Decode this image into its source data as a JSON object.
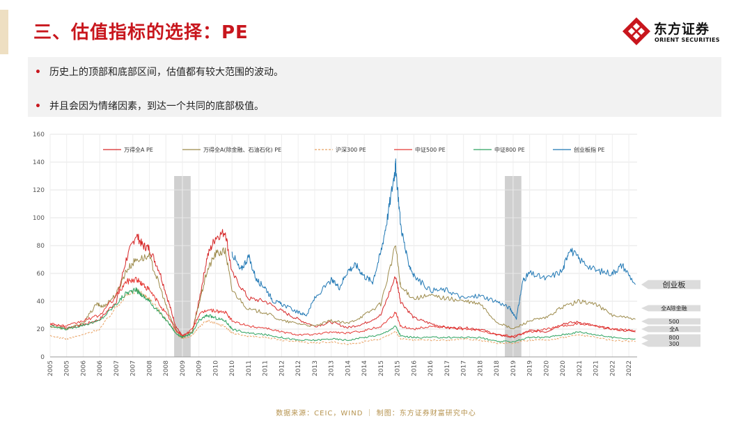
{
  "header": {
    "title": "三、估值指标的选择：PE",
    "logo": {
      "cn": "东方证券",
      "en": "ORIENT SECURITIES"
    }
  },
  "bullets": [
    "历史上的顶部和底部区间，估值都有较大范围的波动。",
    "并且会因为情绪因素，到达一个共同的底部极值。"
  ],
  "source": "数据来源：CEIC，WIND  ｜ 制图：东方证券财富研究中心",
  "colors": {
    "title_red": "#c8161d",
    "all_a": "#d62728",
    "all_a_ex": "#9c8a4a",
    "hs300": "#e8a060",
    "zz500": "#e53935",
    "zz800": "#2ca25f",
    "cyb": "#1f77b4",
    "shade": "#c8c8c8"
  },
  "chart_data": {
    "type": "line",
    "title": "",
    "xlabel": "",
    "ylabel": "",
    "xlim": [
      2005,
      2022.75
    ],
    "ylim": [
      0,
      160
    ],
    "yticks": [
      0,
      20,
      40,
      60,
      80,
      100,
      120,
      140,
      160
    ],
    "xtick_labels": [
      "2005",
      "2005",
      "2006",
      "2006",
      "2007",
      "2007",
      "2008",
      "2008",
      "2009",
      "2009",
      "2010",
      "2010",
      "2011",
      "2011",
      "2012",
      "2012",
      "2013",
      "2013",
      "2014",
      "2014",
      "2015",
      "2015",
      "2016",
      "2016",
      "2017",
      "2017",
      "2018",
      "2018",
      "2019",
      "2019",
      "2020",
      "2020",
      "2021",
      "2021",
      "2022",
      "2022"
    ],
    "grid": true,
    "legend_position": "top",
    "shaded_ranges": [
      [
        2008.75,
        2009.25
      ],
      [
        2018.75,
        2019.25
      ]
    ],
    "series": [
      {
        "name": "万得全A PE",
        "color_key": "all_a",
        "dash": false,
        "x": [
          2005,
          2005.5,
          2006,
          2006.5,
          2007,
          2007.3,
          2007.6,
          2007.8,
          2008,
          2008.3,
          2008.6,
          2008.8,
          2009,
          2009.3,
          2009.5,
          2009.75,
          2010,
          2010.3,
          2010.5,
          2011,
          2011.5,
          2012,
          2012.5,
          2013,
          2013.5,
          2014,
          2014.5,
          2015,
          2015.45,
          2015.6,
          2016,
          2016.5,
          2017,
          2017.5,
          2018,
          2018.5,
          2019,
          2019.5,
          2020,
          2020.5,
          2021,
          2021.5,
          2022,
          2022.7
        ],
        "y": [
          24,
          21,
          23,
          27,
          40,
          70,
          88,
          80,
          78,
          62,
          38,
          22,
          15,
          18,
          40,
          72,
          86,
          90,
          60,
          42,
          40,
          33,
          27,
          22,
          25,
          21,
          24,
          30,
          58,
          40,
          28,
          24,
          21,
          21,
          20,
          16,
          14,
          19,
          18,
          24,
          25,
          22,
          20,
          18
        ]
      },
      {
        "name": "万得全A(除金融、石油石化) PE",
        "color_key": "all_a_ex",
        "dash": false,
        "x": [
          2005,
          2005.5,
          2006,
          2006.4,
          2006.6,
          2007,
          2007.3,
          2007.6,
          2008,
          2008.3,
          2008.6,
          2008.8,
          2009,
          2009.3,
          2009.5,
          2009.75,
          2010,
          2010.3,
          2010.5,
          2011,
          2011.5,
          2012,
          2012.5,
          2013,
          2013.5,
          2014,
          2014.5,
          2015,
          2015.45,
          2015.6,
          2016,
          2016.5,
          2017,
          2017.5,
          2018,
          2018.5,
          2019,
          2019.5,
          2020,
          2020.5,
          2021,
          2021.5,
          2022,
          2022.7
        ],
        "y": [
          22,
          20,
          24,
          38,
          36,
          45,
          62,
          70,
          72,
          52,
          30,
          20,
          14,
          18,
          38,
          62,
          74,
          76,
          48,
          34,
          32,
          26,
          24,
          22,
          26,
          24,
          30,
          38,
          80,
          50,
          42,
          44,
          42,
          40,
          38,
          25,
          20,
          26,
          28,
          36,
          40,
          38,
          30,
          27
        ]
      },
      {
        "name": "沪深300 PE",
        "color_key": "hs300",
        "dash": true,
        "x": [
          2005,
          2005.5,
          2006,
          2006.5,
          2007,
          2007.3,
          2007.6,
          2007.8,
          2008,
          2008.3,
          2008.6,
          2008.8,
          2009,
          2009.3,
          2009.5,
          2009.75,
          2010,
          2010.3,
          2010.5,
          2011,
          2011.5,
          2012,
          2012.5,
          2013,
          2013.5,
          2014,
          2014.5,
          2015,
          2015.45,
          2015.6,
          2016,
          2016.5,
          2017,
          2017.5,
          2018,
          2018.5,
          2019,
          2019.5,
          2020,
          2020.5,
          2021,
          2021.5,
          2022,
          2022.7
        ],
        "y": [
          15,
          13,
          16,
          20,
          36,
          44,
          48,
          45,
          42,
          33,
          24,
          17,
          13,
          15,
          22,
          26,
          24,
          22,
          17,
          15,
          14,
          12,
          11,
          10,
          11,
          9,
          11,
          13,
          18,
          13,
          12,
          12,
          12,
          13,
          12,
          10,
          10,
          12,
          12,
          14,
          16,
          14,
          12,
          11
        ]
      },
      {
        "name": "中证500 PE",
        "color_key": "zz500",
        "dash": false,
        "x": [
          2005,
          2005.5,
          2006,
          2006.5,
          2007,
          2007.3,
          2007.6,
          2007.8,
          2008,
          2008.3,
          2008.6,
          2008.8,
          2009,
          2009.3,
          2009.5,
          2009.75,
          2010,
          2010.3,
          2010.5,
          2011,
          2011.5,
          2012,
          2012.5,
          2013,
          2013.5,
          2014,
          2014.5,
          2015,
          2015.45,
          2015.6,
          2016,
          2016.5,
          2017,
          2017.5,
          2018,
          2018.5,
          2019,
          2019.5,
          2020,
          2020.5,
          2021,
          2021.5,
          2022,
          2022.7
        ],
        "y": [
          24,
          22,
          26,
          30,
          44,
          54,
          56,
          52,
          48,
          38,
          28,
          19,
          15,
          20,
          30,
          34,
          33,
          32,
          26,
          22,
          21,
          18,
          16,
          16,
          18,
          17,
          19,
          22,
          32,
          22,
          20,
          22,
          21,
          20,
          19,
          16,
          15,
          18,
          20,
          22,
          24,
          22,
          20,
          19
        ]
      },
      {
        "name": "中证800 PE",
        "color_key": "zz800",
        "dash": false,
        "x": [
          2005,
          2005.5,
          2006,
          2006.5,
          2007,
          2007.3,
          2007.6,
          2007.8,
          2008,
          2008.3,
          2008.6,
          2008.8,
          2009,
          2009.3,
          2009.5,
          2009.75,
          2010,
          2010.3,
          2010.5,
          2011,
          2011.5,
          2012,
          2012.5,
          2013,
          2013.5,
          2014,
          2014.5,
          2015,
          2015.45,
          2015.6,
          2016,
          2016.5,
          2017,
          2017.5,
          2018,
          2018.5,
          2019,
          2019.5,
          2020,
          2020.5,
          2021,
          2021.5,
          2022,
          2022.7
        ],
        "y": [
          22,
          20,
          23,
          26,
          38,
          46,
          48,
          44,
          40,
          32,
          24,
          17,
          14,
          17,
          26,
          30,
          28,
          26,
          20,
          17,
          16,
          14,
          12,
          12,
          13,
          12,
          14,
          16,
          22,
          15,
          14,
          14,
          14,
          14,
          14,
          11,
          11,
          14,
          14,
          16,
          18,
          16,
          14,
          13
        ]
      },
      {
        "name": "创业板指 PE",
        "color_key": "cyb",
        "dash": false,
        "x": [
          2010.5,
          2010.75,
          2011,
          2011.25,
          2011.5,
          2011.75,
          2012,
          2012.5,
          2012.75,
          2013,
          2013.5,
          2013.75,
          2014,
          2014.25,
          2014.5,
          2014.75,
          2015,
          2015.2,
          2015.4,
          2015.45,
          2015.6,
          2015.8,
          2016,
          2016.5,
          2017,
          2017.5,
          2018,
          2018.5,
          2018.9,
          2019.1,
          2019.3,
          2019.5,
          2020,
          2020.5,
          2020.7,
          2021,
          2021.5,
          2022,
          2022.3,
          2022.7
        ],
        "y": [
          75,
          62,
          72,
          55,
          50,
          40,
          38,
          32,
          30,
          42,
          55,
          50,
          62,
          66,
          58,
          54,
          75,
          100,
          130,
          137,
          95,
          70,
          58,
          48,
          48,
          42,
          44,
          40,
          35,
          28,
          55,
          60,
          56,
          62,
          78,
          70,
          62,
          60,
          66,
          52
        ]
      }
    ],
    "right_annotations": [
      {
        "label": "创业板",
        "value": 52
      },
      {
        "label": "全A除金融",
        "value": 35
      },
      {
        "label": "500",
        "value": 25.5
      },
      {
        "label": "全A",
        "value": 20
      },
      {
        "label": "800",
        "value": 14
      },
      {
        "label": "300",
        "value": 9.5
      }
    ]
  }
}
